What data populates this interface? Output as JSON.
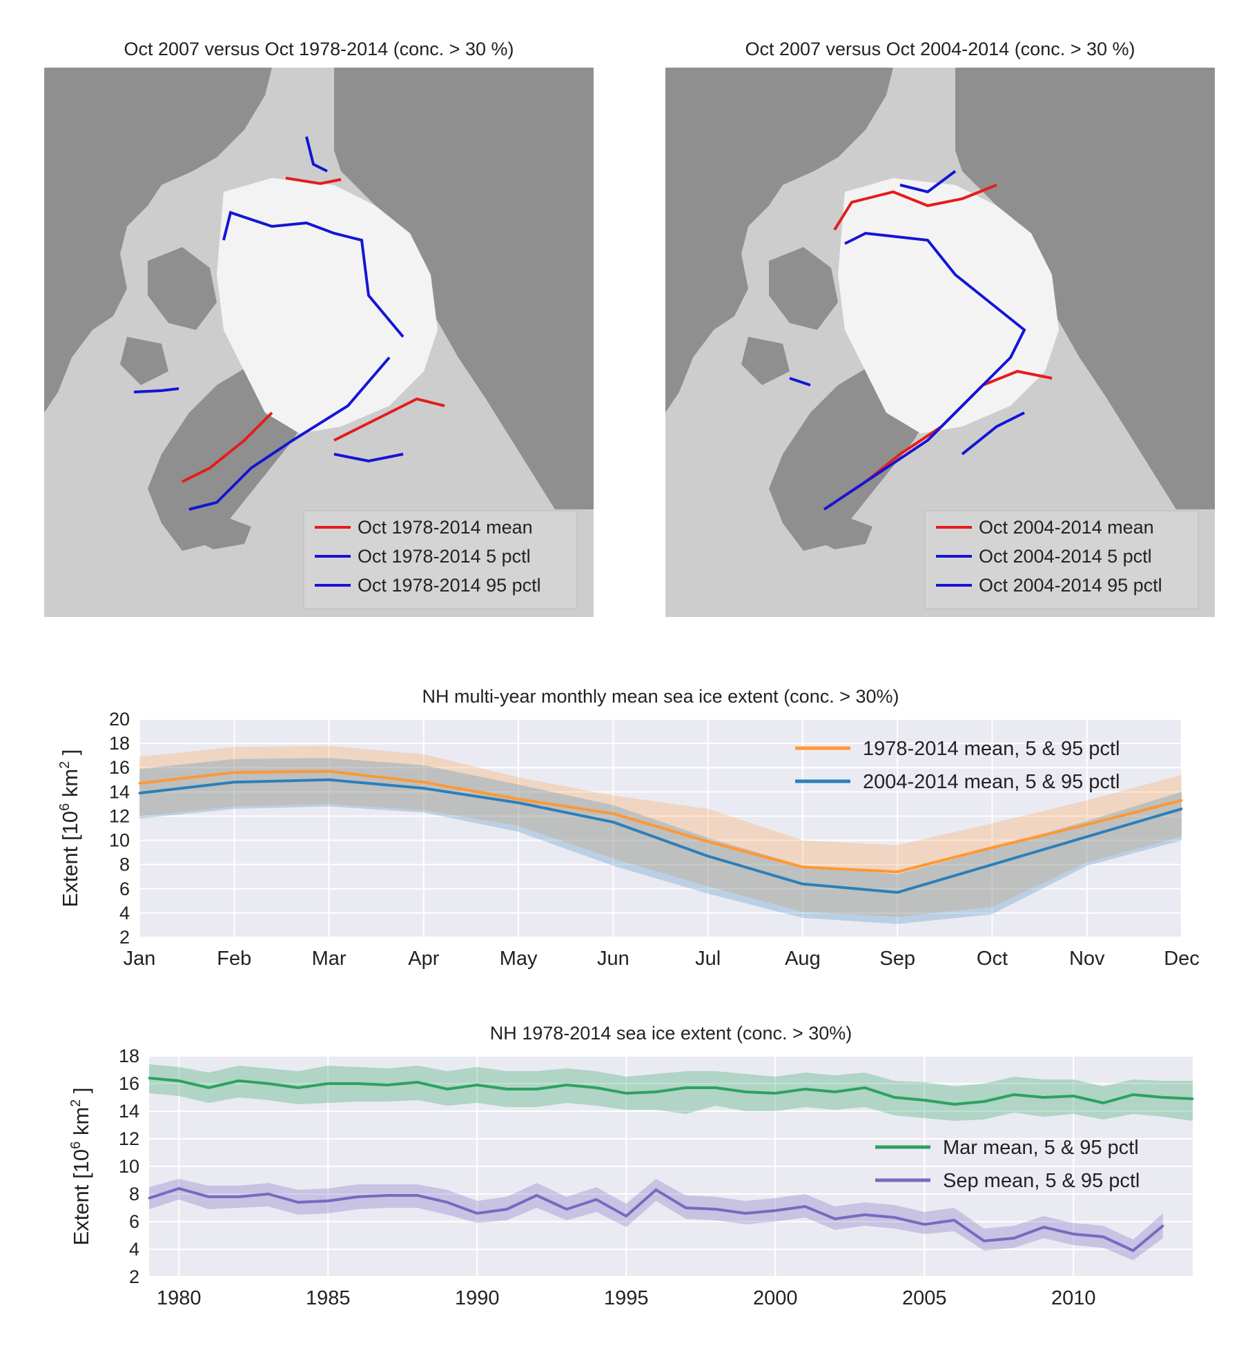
{
  "maps": [
    {
      "title": "Oct 2007 versus Oct 1978-2014 (conc. > 30 %)",
      "legend": [
        "Oct 1978-2014 mean",
        "Oct 1978-2014 5 pctl",
        "Oct 1978-2014 95 pctl"
      ],
      "legend_colors": [
        "#e51c1c",
        "#1414d6",
        "#1414d6"
      ]
    },
    {
      "title": "Oct 2007 versus Oct 2004-2014 (conc. > 30 %)",
      "legend": [
        "Oct 2004-2014 mean",
        "Oct 2004-2014 5 pctl",
        "Oct 2004-2014 95 pctl"
      ],
      "legend_colors": [
        "#e51c1c",
        "#1414d6",
        "#1414d6"
      ]
    }
  ],
  "chart_data": [
    {
      "type": "line",
      "title": "NH multi-year monthly mean sea ice extent (conc. > 30%)",
      "ylabel": "Extent [10^6 km^2]",
      "ylabel_main": "Extent [10",
      "ylabel_exp": "6",
      "ylabel_unit": "km",
      "ylabel_unit_exp": "2",
      "ylabel_close": "]",
      "ylim": [
        2,
        20
      ],
      "yticks": [
        2,
        4,
        6,
        8,
        10,
        12,
        14,
        16,
        18,
        20
      ],
      "categories": [
        "Jan",
        "Feb",
        "Mar",
        "Apr",
        "May",
        "Jun",
        "Jul",
        "Aug",
        "Sep",
        "Oct",
        "Nov",
        "Dec"
      ],
      "grid": true,
      "legend_position": "top-right",
      "series": [
        {
          "name": "1978-2014 mean, 5 & 95 pctl",
          "color": "#ff9833",
          "values": [
            14.7,
            15.6,
            15.7,
            14.8,
            13.4,
            12.2,
            9.9,
            7.8,
            7.4,
            9.4,
            11.3,
            13.3
          ],
          "lower": [
            12.0,
            12.8,
            13.0,
            12.5,
            11.2,
            8.5,
            6.2,
            4.1,
            3.7,
            4.5,
            8.2,
            10.3
          ],
          "upper": [
            16.9,
            17.7,
            17.8,
            17.1,
            15.2,
            13.7,
            12.6,
            10.0,
            9.6,
            11.4,
            13.3,
            15.4
          ]
        },
        {
          "name": "2004-2014 mean, 5 & 95 pctl",
          "color": "#2c7fb8",
          "values": [
            13.9,
            14.8,
            15.0,
            14.3,
            13.1,
            11.5,
            8.7,
            6.4,
            5.7,
            8.0,
            10.3,
            12.6
          ],
          "lower": [
            11.8,
            12.6,
            12.8,
            12.3,
            10.7,
            7.9,
            5.6,
            3.6,
            3.1,
            3.9,
            7.9,
            10.0
          ],
          "upper": [
            15.9,
            16.7,
            16.8,
            16.2,
            14.6,
            12.9,
            10.2,
            7.9,
            7.2,
            9.3,
            11.6,
            14.0
          ]
        }
      ]
    },
    {
      "type": "line",
      "title": "NH 1978-2014 sea ice extent (conc. > 30%)",
      "ylabel": "Extent [10^6 km^2]",
      "ylabel_main": "Extent [10",
      "ylabel_exp": "6",
      "ylabel_unit": "km",
      "ylabel_unit_exp": "2",
      "ylabel_close": "]",
      "ylim": [
        2,
        18
      ],
      "xlim": [
        1979,
        2014
      ],
      "yticks": [
        2,
        4,
        6,
        8,
        10,
        12,
        14,
        16,
        18
      ],
      "xticks": [
        1980,
        1985,
        1990,
        1995,
        2000,
        2005,
        2010
      ],
      "grid": true,
      "legend_position": "center-right",
      "x": [
        1979,
        1980,
        1981,
        1982,
        1983,
        1984,
        1985,
        1986,
        1987,
        1988,
        1989,
        1990,
        1991,
        1992,
        1993,
        1994,
        1995,
        1996,
        1997,
        1998,
        1999,
        2000,
        2001,
        2002,
        2003,
        2004,
        2005,
        2006,
        2007,
        2008,
        2009,
        2010,
        2011,
        2012,
        2013,
        2014
      ],
      "series": [
        {
          "name": "Mar mean, 5 & 95 pctl",
          "color": "#2ca25f",
          "values": [
            16.4,
            16.2,
            15.7,
            16.2,
            16.0,
            15.7,
            16.0,
            16.0,
            15.9,
            16.1,
            15.6,
            15.9,
            15.6,
            15.6,
            15.9,
            15.7,
            15.3,
            15.4,
            15.7,
            15.7,
            15.4,
            15.3,
            15.6,
            15.4,
            15.7,
            15.0,
            14.8,
            14.5,
            14.7,
            15.2,
            15.0,
            15.1,
            14.6,
            15.2,
            15.0,
            14.9
          ],
          "lower": [
            15.3,
            15.1,
            14.6,
            15.0,
            14.8,
            14.5,
            14.6,
            14.7,
            14.7,
            14.8,
            14.4,
            14.6,
            14.3,
            14.3,
            14.6,
            14.4,
            14.1,
            14.1,
            13.8,
            14.4,
            14.0,
            14.0,
            14.3,
            14.1,
            14.3,
            13.7,
            13.5,
            13.3,
            13.4,
            13.9,
            13.6,
            13.8,
            13.4,
            13.8,
            13.6,
            13.3
          ],
          "upper": [
            17.4,
            17.2,
            16.8,
            17.3,
            17.1,
            16.9,
            17.3,
            17.2,
            17.1,
            17.3,
            16.9,
            17.2,
            16.9,
            16.9,
            17.1,
            16.9,
            16.5,
            16.7,
            16.9,
            16.9,
            16.7,
            16.5,
            16.8,
            16.6,
            16.8,
            16.2,
            16.1,
            15.8,
            16.0,
            16.5,
            16.3,
            16.3,
            15.8,
            16.3,
            16.2,
            16.2
          ]
        },
        {
          "name": "Sep mean, 5 & 95 pctl",
          "color": "#7b68c0",
          "values": [
            7.7,
            8.4,
            7.8,
            7.8,
            8.0,
            7.4,
            7.5,
            7.8,
            7.9,
            7.9,
            7.4,
            6.6,
            6.9,
            7.9,
            6.9,
            7.6,
            6.4,
            8.3,
            7.0,
            6.9,
            6.6,
            6.8,
            7.1,
            6.2,
            6.5,
            6.3,
            5.8,
            6.1,
            4.6,
            4.8,
            5.6,
            5.1,
            4.9,
            3.9,
            5.7,
            null
          ],
          "lower": [
            6.9,
            7.6,
            6.9,
            7.0,
            7.1,
            6.5,
            6.6,
            6.9,
            7.0,
            7.0,
            6.5,
            5.9,
            6.1,
            7.0,
            6.1,
            6.7,
            5.6,
            7.5,
            6.2,
            6.1,
            5.8,
            6.0,
            6.3,
            5.4,
            5.7,
            5.5,
            5.1,
            5.3,
            3.9,
            4.1,
            4.8,
            4.3,
            4.1,
            3.2,
            4.8,
            null
          ],
          "upper": [
            8.5,
            9.1,
            8.6,
            8.6,
            8.8,
            8.3,
            8.4,
            8.7,
            8.7,
            8.7,
            8.3,
            7.5,
            7.8,
            8.8,
            7.8,
            8.5,
            7.3,
            9.1,
            7.9,
            7.8,
            7.5,
            7.7,
            8.0,
            7.1,
            7.4,
            7.2,
            6.7,
            7.0,
            5.5,
            5.7,
            6.4,
            5.9,
            5.7,
            4.7,
            6.6,
            null
          ]
        }
      ]
    }
  ]
}
